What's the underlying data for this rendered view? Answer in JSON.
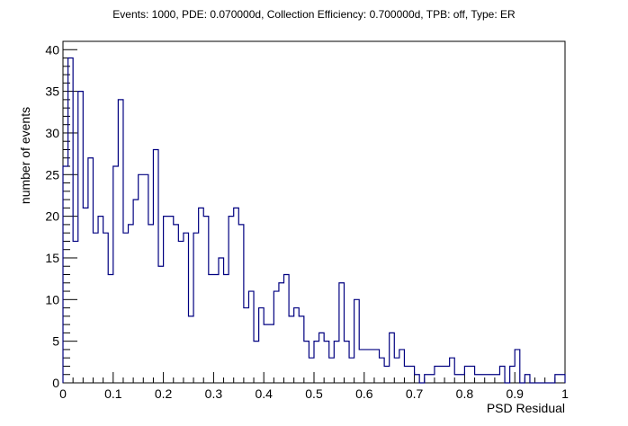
{
  "chart_data": {
    "type": "bar",
    "title": "Events: 1000, PDE: 0.070000d, Collection Efficiency: 0.700000d, TPB: off, Type: ER",
    "xlabel": "PSD Residual",
    "ylabel": "number of events",
    "xlim": [
      0,
      1
    ],
    "ylim": [
      0,
      41
    ],
    "bin_width": 0.01,
    "x_ticks": [
      "0",
      "0.1",
      "0.2",
      "0.3",
      "0.4",
      "0.5",
      "0.6",
      "0.7",
      "0.8",
      "0.9",
      "1"
    ],
    "y_ticks": [
      "0",
      "5",
      "10",
      "15",
      "20",
      "25",
      "30",
      "35",
      "40"
    ],
    "grid": false,
    "line_color": "#000080",
    "values": [
      26,
      39,
      17,
      35,
      21,
      27,
      18,
      20,
      18,
      13,
      26,
      34,
      18,
      19,
      22,
      25,
      25,
      19,
      28,
      14,
      20,
      20,
      19,
      17,
      18,
      8,
      18,
      21,
      20,
      13,
      13,
      15,
      13,
      20,
      21,
      19,
      9,
      11,
      5,
      9,
      7,
      7,
      11,
      12,
      13,
      8,
      9,
      8,
      5,
      3,
      5,
      6,
      5,
      3,
      5,
      12,
      5,
      3,
      10,
      4,
      4,
      4,
      4,
      3,
      2,
      6,
      3,
      4,
      2,
      2,
      1,
      0,
      1,
      1,
      2,
      2,
      2,
      3,
      1,
      1,
      2,
      2,
      1,
      1,
      1,
      1,
      1,
      2,
      0,
      2,
      4,
      0,
      1,
      0,
      0,
      0,
      0,
      0,
      1,
      1
    ]
  }
}
